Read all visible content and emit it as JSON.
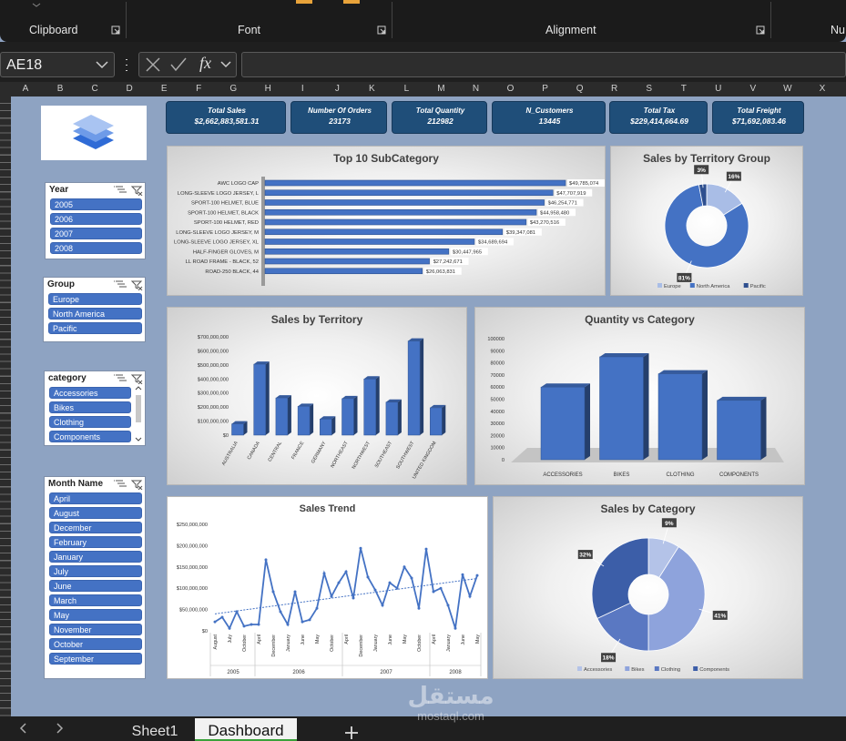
{
  "ribbon": {
    "groups": [
      "Clipboard",
      "Font",
      "Alignment",
      "Nu"
    ]
  },
  "formula_bar": {
    "name_box": "AE18",
    "function_label": "fx"
  },
  "columns": [
    "A",
    "B",
    "C",
    "D",
    "E",
    "F",
    "G",
    "H",
    "I",
    "J",
    "K",
    "L",
    "M",
    "N",
    "O",
    "P",
    "Q",
    "R",
    "S",
    "T",
    "U",
    "V",
    "W",
    "X"
  ],
  "kpis": [
    {
      "label": "Total Sales",
      "value": "$2,662,883,581.31"
    },
    {
      "label": "Number Of Orders",
      "value": 23173
    },
    {
      "label": "Total Quantity",
      "value": 212982
    },
    {
      "label": "N_Customers",
      "value": 13445
    },
    {
      "label": "Total Tax",
      "value": "$229,414,664.69"
    },
    {
      "label": "Total Freight",
      "value": "$71,692,083.46"
    }
  ],
  "slicers": [
    {
      "title": "Year",
      "items": [
        "2005",
        "2006",
        "2007",
        "2008"
      ]
    },
    {
      "title": "Group",
      "items": [
        "Europe",
        "North America",
        "Pacific"
      ]
    },
    {
      "title": "category",
      "items": [
        "Accessories",
        "Bikes",
        "Clothing",
        "Components"
      ]
    },
    {
      "title": "Month Name",
      "items": [
        "April",
        "August",
        "December",
        "February",
        "January",
        "July",
        "June",
        "March",
        "May",
        "November",
        "October",
        "September"
      ]
    }
  ],
  "chart_data": [
    {
      "type": "hbar",
      "title": "Top 10 SubCategory",
      "color": "#4472c4",
      "categories": [
        "AWC LOGO CAP",
        "LONG-SLEEVE LOGO JERSEY, L",
        "SPORT-100 HELMET, BLUE",
        "SPORT-100 HELMET, BLACK",
        "SPORT-100 HELMET, RED",
        "LONG-SLEEVE LOGO JERSEY, M",
        "LONG-SLEEVE LOGO JERSEY, XL",
        "HALF-FINGER GLOVES, M",
        "LL ROAD FRAME - BLACK, 52",
        "ROAD-250 BLACK, 44"
      ],
      "values": [
        49785074,
        47707919,
        46254771,
        44958480,
        43270516,
        39347081,
        34689694,
        30447965,
        27242671,
        26063831
      ],
      "value_labels": [
        "$49,785,074",
        "$47,707,919",
        "$46,254,771",
        "$44,958,480",
        "$43,270,516",
        "$39,347,081",
        "$34,689,694",
        "$30,447,965",
        "$27,242,671",
        "$26,063,831"
      ]
    },
    {
      "type": "donut",
      "title": "Sales by Territory Group",
      "legend": "bottom",
      "categories": [
        "Europe",
        "North America",
        "Pacific"
      ],
      "values": [
        16,
        81,
        3
      ],
      "value_labels": [
        "16%",
        "81%",
        "3%"
      ],
      "colors": [
        "#a9bde6",
        "#4472c4",
        "#2e4f8f"
      ]
    },
    {
      "type": "bar3d",
      "title": "Sales by Territory",
      "color": "#4472c4",
      "categories": [
        "AUSTRALIA",
        "CANADA",
        "CENTRAL",
        "FRANCE",
        "GERMANY",
        "NORTHEAST",
        "NORTHWEST",
        "SOUTHEAST",
        "SOUTHWEST",
        "UNITED KINGDOM"
      ],
      "values": [
        80000000,
        505000000,
        265000000,
        205000000,
        115000000,
        260000000,
        400000000,
        235000000,
        670000000,
        195000000
      ],
      "ylim": [
        0,
        700000000
      ],
      "yticks": [
        {
          "value": 0,
          "label": "$0"
        },
        {
          "value": 100000000,
          "label": "$100,000,000"
        },
        {
          "value": 200000000,
          "label": "$200,000,000"
        },
        {
          "value": 300000000,
          "label": "$300,000,000"
        },
        {
          "value": 400000000,
          "label": "$400,000,000"
        },
        {
          "value": 500000000,
          "label": "$500,000,000"
        },
        {
          "value": 600000000,
          "label": "$600,000,000"
        },
        {
          "value": 700000000,
          "label": "$700,000,000"
        }
      ]
    },
    {
      "type": "bar3d",
      "title": "Quantity vs Category",
      "color": "#4472c4",
      "categories": [
        "ACCESSORIES",
        "BIKES",
        "CLOTHING",
        "COMPONENTS"
      ],
      "values": [
        60000,
        85000,
        71000,
        49000
      ],
      "ylim": [
        0,
        100000
      ],
      "yticks": [
        0,
        10000,
        20000,
        30000,
        40000,
        50000,
        60000,
        70000,
        80000,
        90000,
        100000
      ]
    },
    {
      "type": "line",
      "title": "Sales Trend",
      "trendline": true,
      "groups": [
        {
          "label": "2005",
          "categories": [
            "August",
            null,
            "July",
            null,
            "October",
            null
          ]
        },
        {
          "label": "2006",
          "categories": [
            "April",
            null,
            "December",
            null,
            "January",
            null,
            "June",
            null,
            "May",
            null,
            "October",
            null
          ]
        },
        {
          "label": "2007",
          "categories": [
            "April",
            null,
            "December",
            null,
            "January",
            null,
            "June",
            null,
            "May",
            null,
            "October",
            null
          ]
        },
        {
          "label": "2008",
          "categories": [
            "April",
            null,
            "January",
            null,
            "June",
            null,
            "May"
          ]
        }
      ],
      "series": [
        {
          "color": "#4472c4",
          "values": [
            21000000,
            32000000,
            6000000,
            45000000,
            11000000,
            15000000,
            15000000,
            167000000,
            92000000,
            45000000,
            15000000,
            92000000,
            21000000,
            26000000,
            53000000,
            135000000,
            81000000,
            113000000,
            139000000,
            77000000,
            194000000,
            126000000,
            96000000,
            60000000,
            113000000,
            100000000,
            150000000,
            124000000,
            53000000,
            192000000,
            92000000,
            100000000,
            60000000,
            6000000,
            132000000,
            81000000,
            130000000
          ]
        }
      ],
      "ylim": [
        0,
        250000000
      ],
      "yticks": [
        {
          "value": 0,
          "label": "$0"
        },
        {
          "value": 50000000,
          "label": "$50,000,000"
        },
        {
          "value": 100000000,
          "label": "$100,000,000"
        },
        {
          "value": 150000000,
          "label": "$150,000,000"
        },
        {
          "value": 200000000,
          "label": "$200,000,000"
        },
        {
          "value": 250000000,
          "label": "$250,000,000"
        }
      ]
    },
    {
      "type": "donut",
      "title": "Sales by Category",
      "legend": "bottom",
      "categories": [
        "Accessories",
        "Bikes",
        "Clothing",
        "Components"
      ],
      "values": [
        9,
        41,
        18,
        32
      ],
      "value_labels": [
        "9%",
        "41%",
        "18%",
        "32%"
      ],
      "colors": [
        "#b4c3e8",
        "#8ea3dc",
        "#5a78c2",
        "#3c5ea8"
      ]
    }
  ],
  "sheet_tabs": [
    "Sheet1",
    "Dashboard"
  ],
  "watermark": [
    "مستقل",
    "mostaql.com"
  ]
}
